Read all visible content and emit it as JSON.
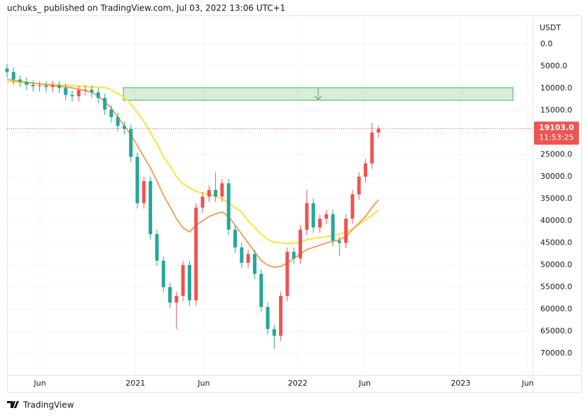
{
  "header": {
    "text": "uchuks_ published on TradingView.com, Jul 03, 2022 13:06 UTC+1"
  },
  "footer": {
    "brand": "TradingView"
  },
  "chart_data": {
    "type": "candlestick",
    "y_axis_label": "USDT",
    "inverted": true,
    "ylim": [
      0,
      70000
    ],
    "yticks": [
      {
        "value": 0,
        "label": "0.0"
      },
      {
        "value": 5000,
        "label": "5000.0"
      },
      {
        "value": 10000,
        "label": "10000.0"
      },
      {
        "value": 15000,
        "label": "15000.0"
      },
      {
        "value": 20000,
        "label": "20000.0"
      },
      {
        "value": 25000,
        "label": "25000.0"
      },
      {
        "value": 30000,
        "label": "30000.0"
      },
      {
        "value": 35000,
        "label": "35000.0"
      },
      {
        "value": 40000,
        "label": "40000.0"
      },
      {
        "value": 45000,
        "label": "45000.0"
      },
      {
        "value": 50000,
        "label": "50000.0"
      },
      {
        "value": 55000,
        "label": "55000.0"
      },
      {
        "value": 60000,
        "label": "60000.0"
      },
      {
        "value": 65000,
        "label": "65000.0"
      },
      {
        "value": 70000,
        "label": "70000.0"
      }
    ],
    "xticks": [
      {
        "value": 5.05,
        "label": "Jun"
      },
      {
        "value": 19.7,
        "label": "2021"
      },
      {
        "value": 30.2,
        "label": "Jun"
      },
      {
        "value": 44.6,
        "label": "2022"
      },
      {
        "value": 54.9,
        "label": "Jun"
      },
      {
        "value": 69.6,
        "label": "2023"
      },
      {
        "value": 79.9,
        "label": "Jun"
      }
    ],
    "grid": true,
    "up_color": "#26a69a",
    "down_color": "#ef5350",
    "open": [
      5500,
      6300,
      8000,
      8500,
      9200,
      9500,
      9400,
      9700,
      9300,
      9900,
      11500,
      11800,
      10400,
      10300,
      10900,
      12200,
      14800,
      16500,
      18500,
      19200,
      25500,
      36000,
      31000,
      43000,
      49000,
      55000,
      58500,
      57000,
      50000,
      58000,
      37000,
      34500,
      33000,
      34500,
      31500,
      42000,
      46000,
      49500,
      47500,
      52000,
      59500,
      64500,
      66000,
      57000,
      47000,
      48500,
      42000,
      36000,
      41500,
      39500,
      38500,
      44500,
      45000,
      39500,
      34000,
      30000,
      27000,
      20000
    ],
    "high": [
      7500,
      9200,
      9700,
      10400,
      10700,
      10700,
      10900,
      10900,
      11100,
      12700,
      13000,
      13000,
      11600,
      12100,
      13400,
      16000,
      17700,
      19700,
      20400,
      26700,
      37200,
      37200,
      44200,
      50200,
      56200,
      59700,
      64500,
      58200,
      59200,
      59200,
      38200,
      35700,
      35700,
      35700,
      43200,
      47200,
      50700,
      50700,
      53200,
      60700,
      65700,
      69000,
      67200,
      58200,
      49700,
      49700,
      43200,
      42700,
      42700,
      40700,
      45700,
      48000,
      46200,
      40700,
      35200,
      31200,
      28200,
      21200
    ],
    "low": [
      4500,
      5300,
      7000,
      7500,
      8200,
      8400,
      8400,
      8300,
      8300,
      8900,
      10500,
      9400,
      9300,
      9300,
      9900,
      11200,
      13800,
      15500,
      17500,
      18200,
      24500,
      30000,
      30000,
      42000,
      48000,
      54000,
      56000,
      49000,
      49000,
      36000,
      33500,
      32000,
      29000,
      30500,
      30500,
      41000,
      45000,
      46500,
      46500,
      51000,
      58500,
      63500,
      56000,
      46000,
      46000,
      41000,
      33000,
      35000,
      38500,
      37500,
      37500,
      43500,
      38500,
      33000,
      29000,
      26000,
      17800,
      18500
    ],
    "close": [
      6300,
      8000,
      8500,
      9200,
      9500,
      9400,
      9700,
      9300,
      9900,
      11500,
      11800,
      10400,
      10300,
      10900,
      12200,
      14800,
      16500,
      18500,
      19200,
      25500,
      36000,
      31000,
      43000,
      49000,
      55000,
      58500,
      57000,
      50000,
      58000,
      37000,
      34500,
      33000,
      34500,
      31500,
      42000,
      46000,
      49500,
      47500,
      52000,
      59500,
      64500,
      66000,
      57000,
      47000,
      48500,
      42000,
      36000,
      41500,
      39500,
      38500,
      44500,
      45000,
      39500,
      34000,
      30000,
      27000,
      20000,
      19103
    ],
    "last_price_label": "19103.0",
    "countdown": "11:53:25",
    "zone": [
      9840,
      12700
    ],
    "series": [
      {
        "color": "#f5e63a",
        "values": [
          8500,
          8600,
          8700,
          8800,
          8900,
          9000,
          9000,
          9100,
          9200,
          9300,
          9400,
          9500,
          9600,
          9700,
          9700,
          9800,
          10300,
          11200,
          12000,
          13500,
          15500,
          17500,
          20000,
          22500,
          25500,
          27500,
          30000,
          31600,
          32500,
          33300,
          33700,
          34000,
          34500,
          35000,
          36000,
          37000,
          38000,
          40000,
          41500,
          43000,
          44200,
          44800,
          45000,
          45100,
          45100,
          44700,
          44300,
          44000,
          43800,
          43600,
          43300,
          43000,
          42500,
          41800,
          40800,
          39800,
          38800,
          37600
        ]
      },
      {
        "color": "#f0a35e",
        "values": [
          8000,
          8200,
          8400,
          8600,
          8800,
          9000,
          9200,
          9300,
          9500,
          9700,
          9900,
          10200,
          10500,
          10900,
          11800,
          13000,
          14500,
          16500,
          18500,
          20500,
          23000,
          25500,
          28000,
          31000,
          34200,
          36800,
          39500,
          41600,
          42500,
          41000,
          40000,
          39000,
          38400,
          38000,
          39000,
          41000,
          43000,
          45000,
          47000,
          49000,
          50000,
          50500,
          50300,
          49500,
          48500,
          47500,
          46500,
          46000,
          45500,
          45000,
          44600,
          44300,
          43500,
          42000,
          40500,
          39000,
          37000,
          35200
        ]
      }
    ]
  }
}
